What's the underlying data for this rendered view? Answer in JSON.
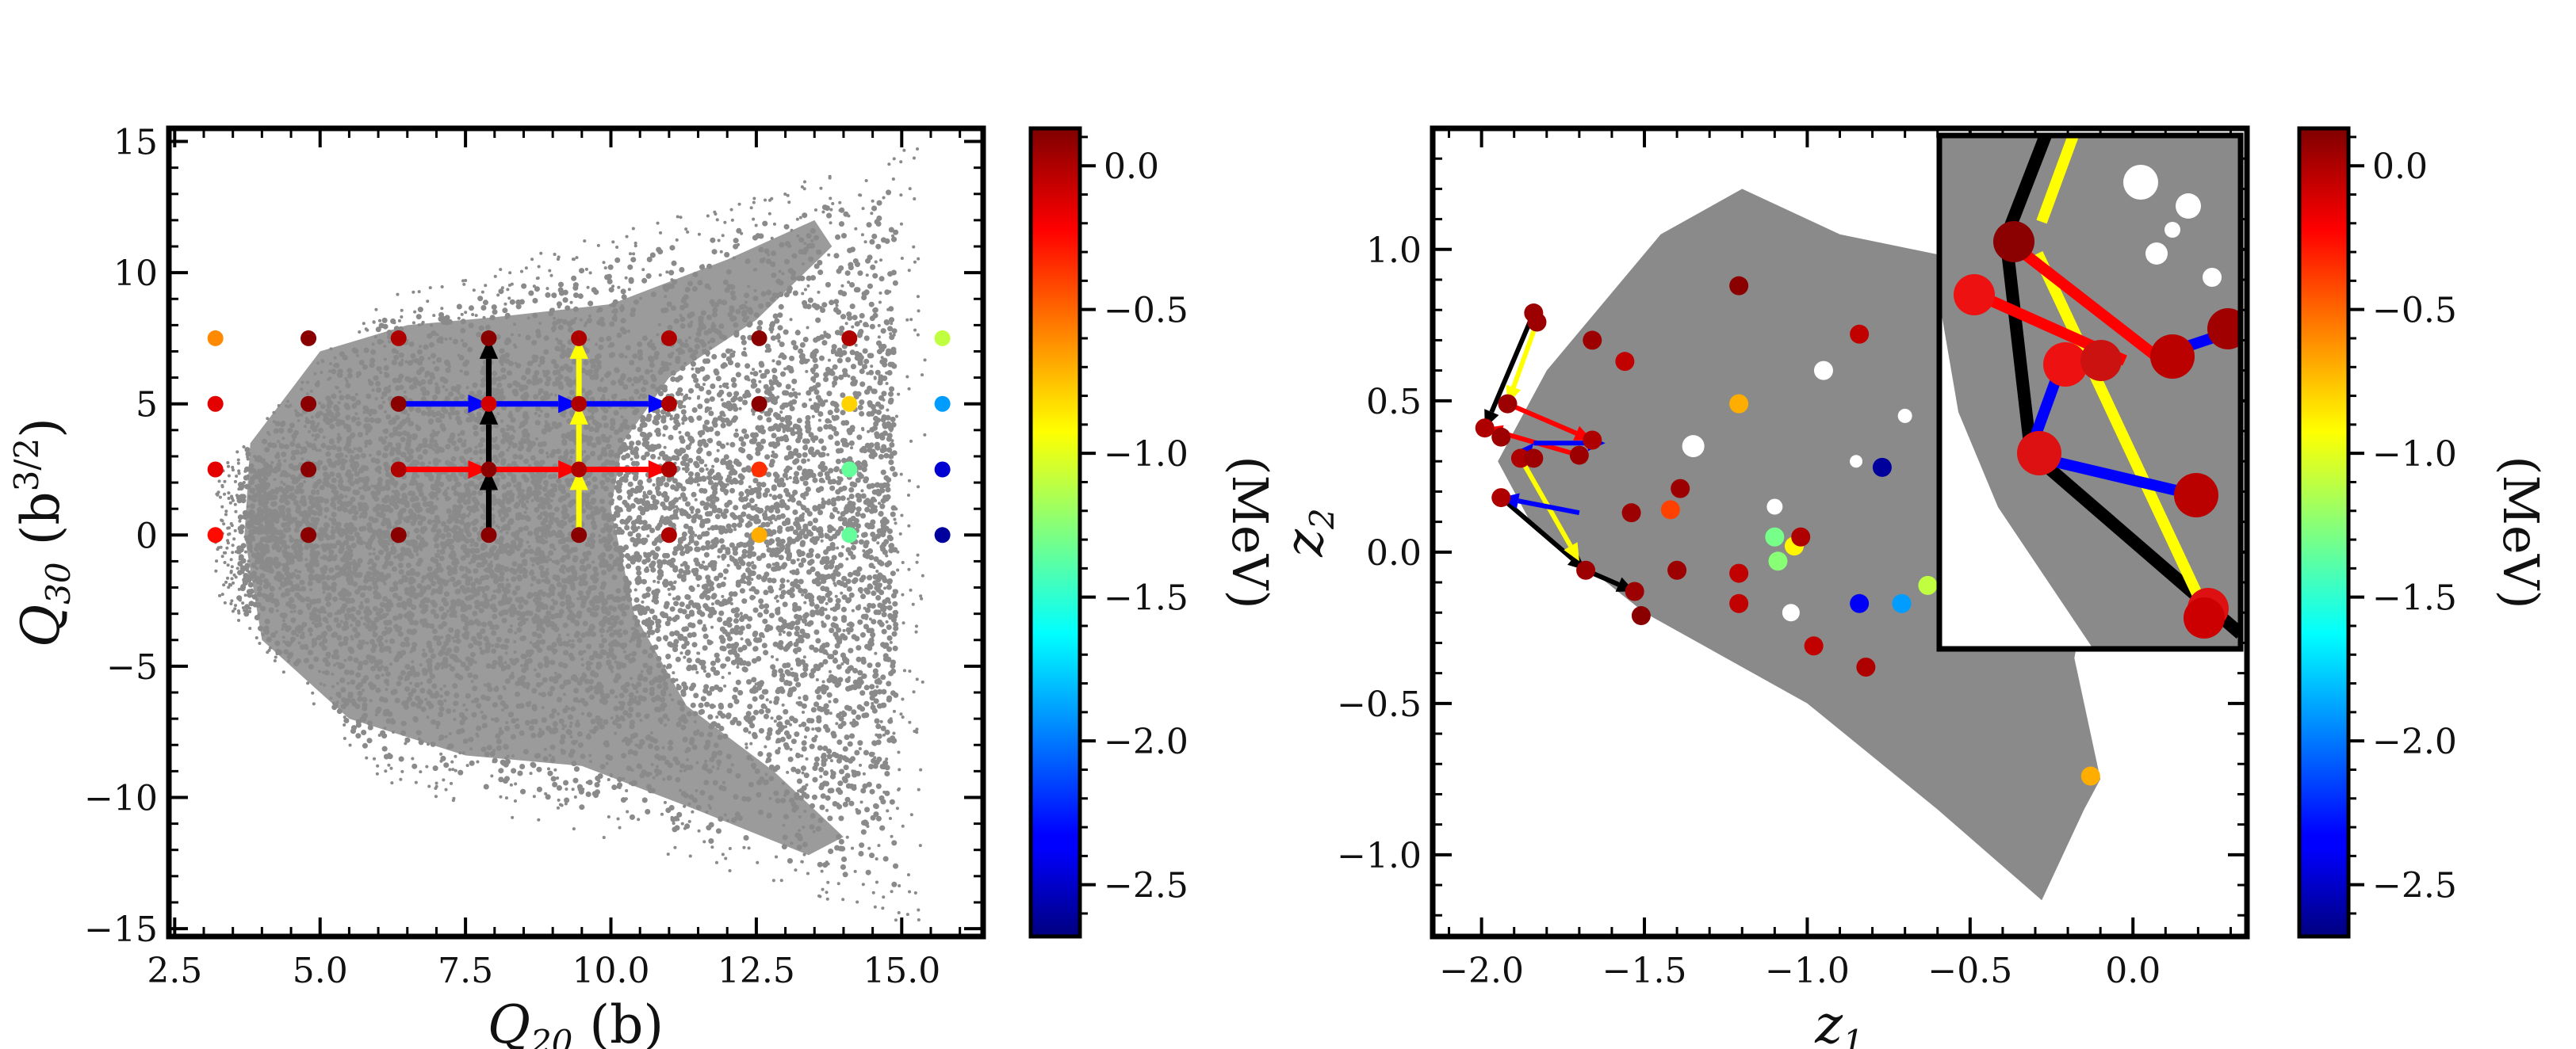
{
  "chart_data": [
    {
      "type": "scatter",
      "id": "left",
      "xlabel_symbol": "Q",
      "xlabel_sub": "20",
      "xlabel_unit": " (b)",
      "ylabel_symbol": "Q",
      "ylabel_sub": "30",
      "ylabel_unit_pre": " (b",
      "ylabel_unit_sup": "3/2",
      "ylabel_unit_post": ")",
      "xlim": [
        2.4,
        16.4
      ],
      "ylim": [
        -15.3,
        15.5
      ],
      "xticks": [
        2.5,
        5.0,
        7.5,
        10.0,
        12.5,
        15.0
      ],
      "xtick_labels": [
        "2.5",
        "5.0",
        "7.5",
        "10.0",
        "12.5",
        "15.0"
      ],
      "yticks": [
        -15,
        -10,
        -5,
        0,
        5,
        10,
        15
      ],
      "ytick_labels": [
        "−15",
        "−10",
        "−5",
        "0",
        "5",
        "10",
        "15"
      ],
      "background_cloud_color": "#8a8a8a",
      "grid_points": [
        {
          "x": 3.2,
          "y": 7.5,
          "e": -0.6
        },
        {
          "x": 3.2,
          "y": 5.0,
          "e": -0.15
        },
        {
          "x": 3.2,
          "y": 2.5,
          "e": -0.15
        },
        {
          "x": 3.2,
          "y": 0.0,
          "e": -0.25
        },
        {
          "x": 4.8,
          "y": 7.5,
          "e": 0.1
        },
        {
          "x": 4.8,
          "y": 5.0,
          "e": 0.1
        },
        {
          "x": 4.8,
          "y": 2.5,
          "e": 0.1
        },
        {
          "x": 4.8,
          "y": 0.0,
          "e": 0.1
        },
        {
          "x": 6.35,
          "y": 7.5,
          "e": 0.0
        },
        {
          "x": 6.35,
          "y": 5.0,
          "e": 0.1
        },
        {
          "x": 6.35,
          "y": 2.5,
          "e": 0.0
        },
        {
          "x": 6.35,
          "y": 0.0,
          "e": 0.1
        },
        {
          "x": 7.9,
          "y": 7.5,
          "e": 0.1
        },
        {
          "x": 7.9,
          "y": 5.0,
          "e": -0.1
        },
        {
          "x": 7.9,
          "y": 2.5,
          "e": 0.1
        },
        {
          "x": 7.9,
          "y": 0.0,
          "e": 0.1
        },
        {
          "x": 9.45,
          "y": 7.5,
          "e": 0.0
        },
        {
          "x": 9.45,
          "y": 5.0,
          "e": 0.0
        },
        {
          "x": 9.45,
          "y": 2.5,
          "e": 0.0
        },
        {
          "x": 9.45,
          "y": 0.0,
          "e": 0.1
        },
        {
          "x": 11.0,
          "y": 7.5,
          "e": 0.0
        },
        {
          "x": 11.0,
          "y": 5.0,
          "e": 0.0
        },
        {
          "x": 11.0,
          "y": 2.5,
          "e": 0.0
        },
        {
          "x": 11.0,
          "y": 0.0,
          "e": 0.0
        },
        {
          "x": 12.55,
          "y": 7.5,
          "e": 0.1
        },
        {
          "x": 12.55,
          "y": 5.0,
          "e": 0.1
        },
        {
          "x": 12.55,
          "y": 2.5,
          "e": -0.35
        },
        {
          "x": 12.55,
          "y": 0.0,
          "e": -0.7
        },
        {
          "x": 14.1,
          "y": 7.5,
          "e": 0.0
        },
        {
          "x": 14.1,
          "y": 5.0,
          "e": -0.8
        },
        {
          "x": 14.1,
          "y": 2.5,
          "e": -1.35
        },
        {
          "x": 14.1,
          "y": 0.0,
          "e": -1.35
        },
        {
          "x": 15.7,
          "y": 7.5,
          "e": -1.1
        },
        {
          "x": 15.7,
          "y": 5.0,
          "e": -1.9
        },
        {
          "x": 15.7,
          "y": 2.5,
          "e": -2.45
        },
        {
          "x": 15.7,
          "y": 0.0,
          "e": -2.6
        }
      ],
      "arrows": [
        {
          "color": "#0000ff",
          "x1": 6.35,
          "y1": 5.0,
          "x2": 11.0,
          "y2": 5.0
        },
        {
          "color": "#ff0000",
          "x1": 6.35,
          "y1": 2.5,
          "x2": 11.0,
          "y2": 2.5
        },
        {
          "color": "#000000",
          "x1": 7.9,
          "y1": 0.0,
          "x2": 7.9,
          "y2": 7.5
        },
        {
          "color": "#ffff00",
          "x1": 9.45,
          "y1": 0.0,
          "x2": 9.45,
          "y2": 7.5
        }
      ],
      "colorbar": {
        "label": "(MeV)",
        "vmin": -2.68,
        "vmax": 0.13,
        "ticks": [
          0.0,
          -0.5,
          -1.0,
          -1.5,
          -2.0,
          -2.5
        ],
        "tick_labels": [
          "0.0",
          "−0.5",
          "−1.0",
          "−1.5",
          "−2.0",
          "−2.5"
        ]
      }
    },
    {
      "type": "scatter",
      "id": "right",
      "xlabel_symbol": "z",
      "xlabel_sub": "1",
      "ylabel_symbol": "z",
      "ylabel_sub": "2",
      "xlim": [
        -2.15,
        0.35
      ],
      "ylim": [
        -1.27,
        1.4
      ],
      "xticks": [
        -2.0,
        -1.5,
        -1.0,
        -0.5,
        0.0
      ],
      "xtick_labels": [
        "−2.0",
        "−1.5",
        "−1.0",
        "−0.5",
        "0.0"
      ],
      "yticks": [
        -1.0,
        -0.5,
        0.0,
        0.5,
        1.0
      ],
      "ytick_labels": [
        "−1.0",
        "−0.5",
        "0.0",
        "0.5",
        "1.0"
      ],
      "background_cloud_color": "#8a8a8a",
      "points": [
        {
          "x": -1.84,
          "y": 0.79,
          "e": 0.05
        },
        {
          "x": -1.83,
          "y": 0.76,
          "e": 0.05
        },
        {
          "x": -1.66,
          "y": 0.7,
          "e": 0.05
        },
        {
          "x": -1.56,
          "y": 0.63,
          "e": -0.05
        },
        {
          "x": -1.21,
          "y": 0.88,
          "e": 0.1
        },
        {
          "x": -1.21,
          "y": 0.49,
          "e": -0.7
        },
        {
          "x": -0.84,
          "y": 0.72,
          "e": -0.05
        },
        {
          "x": -0.77,
          "y": 0.28,
          "e": -2.6
        },
        {
          "x": -1.99,
          "y": 0.41,
          "e": 0.0
        },
        {
          "x": -1.92,
          "y": 0.49,
          "e": 0.05
        },
        {
          "x": -1.94,
          "y": 0.38,
          "e": 0.05
        },
        {
          "x": -1.88,
          "y": 0.31,
          "e": 0.0
        },
        {
          "x": -1.84,
          "y": 0.31,
          "e": 0.05
        },
        {
          "x": -1.7,
          "y": 0.32,
          "e": 0.05
        },
        {
          "x": -1.66,
          "y": 0.37,
          "e": 0.0
        },
        {
          "x": -1.94,
          "y": 0.18,
          "e": 0.0
        },
        {
          "x": -1.54,
          "y": 0.13,
          "e": 0.05
        },
        {
          "x": -1.39,
          "y": 0.21,
          "e": 0.05
        },
        {
          "x": -1.42,
          "y": 0.14,
          "e": -0.4
        },
        {
          "x": -1.68,
          "y": -0.06,
          "e": 0.05
        },
        {
          "x": -1.4,
          "y": -0.06,
          "e": 0.05
        },
        {
          "x": -1.53,
          "y": -0.13,
          "e": 0.05
        },
        {
          "x": -1.51,
          "y": -0.21,
          "e": 0.1
        },
        {
          "x": -1.21,
          "y": -0.07,
          "e": -0.05
        },
        {
          "x": -1.21,
          "y": -0.17,
          "e": -0.05
        },
        {
          "x": -1.1,
          "y": 0.05,
          "e": -1.3
        },
        {
          "x": -1.09,
          "y": -0.03,
          "e": -1.25
        },
        {
          "x": -1.04,
          "y": 0.02,
          "e": -0.9
        },
        {
          "x": -1.02,
          "y": 0.05,
          "e": 0.0
        },
        {
          "x": -0.98,
          "y": -0.31,
          "e": -0.05
        },
        {
          "x": -0.84,
          "y": -0.17,
          "e": -2.35
        },
        {
          "x": -0.71,
          "y": -0.17,
          "e": -1.9
        },
        {
          "x": -0.63,
          "y": -0.11,
          "e": -1.1
        },
        {
          "x": -0.82,
          "y": -0.38,
          "e": 0.0
        },
        {
          "x": -0.13,
          "y": -0.74,
          "e": -0.7
        }
      ],
      "colorbar": {
        "label": "(MeV)",
        "vmin": -2.68,
        "vmax": 0.13,
        "ticks": [
          0.0,
          -0.5,
          -1.0,
          -1.5,
          -2.0,
          -2.5
        ],
        "tick_labels": [
          "0.0",
          "−0.5",
          "−1.0",
          "−1.5",
          "−2.0",
          "−2.5"
        ]
      }
    }
  ]
}
